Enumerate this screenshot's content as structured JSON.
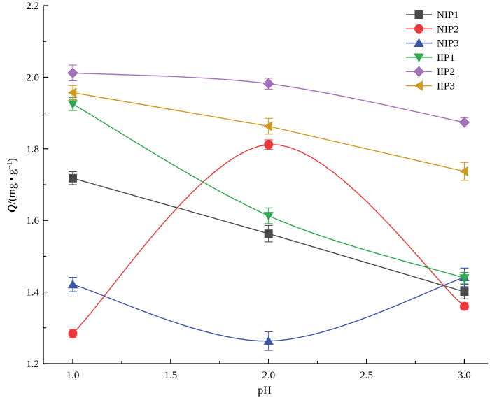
{
  "chart_data": {
    "type": "line",
    "xlabel": "pH",
    "ylabel_main": "Q",
    "ylabel_paren": "(mg • g",
    "ylabel_sup": "−1",
    "ylabel_close": ")",
    "xlim": [
      0.85,
      3.12
    ],
    "ylim": [
      1.2,
      2.2
    ],
    "x_ticks": [
      "1.0",
      "1.5",
      "2.0",
      "2.5",
      "3.0"
    ],
    "y_ticks": [
      "1.2",
      "1.4",
      "1.6",
      "1.8",
      "2.0",
      "2.2"
    ],
    "x": [
      1.0,
      2.0,
      3.0
    ],
    "legend_position": "top-right",
    "series": [
      {
        "name": "NIP1",
        "color": "#4a4a4a",
        "marker": "square",
        "values": [
          1.718,
          1.563,
          1.401
        ],
        "errors": [
          0.018,
          0.023,
          0.02
        ],
        "smooth": false
      },
      {
        "name": "NIP2",
        "color": "#e8383b",
        "marker": "circle",
        "values": [
          1.284,
          1.812,
          1.36
        ],
        "errors": [
          0.012,
          0.013,
          0.01
        ],
        "smooth": true
      },
      {
        "name": "NIP3",
        "color": "#3d56a6",
        "marker": "triangle-up",
        "values": [
          1.421,
          1.263,
          1.441
        ],
        "errors": [
          0.02,
          0.026,
          0.026
        ],
        "smooth": true
      },
      {
        "name": "IIP1",
        "color": "#2fa84f",
        "marker": "triangle-down",
        "values": [
          1.925,
          1.613,
          1.439
        ],
        "errors": [
          0.018,
          0.022,
          0.016
        ],
        "smooth": true
      },
      {
        "name": "IIP2",
        "color": "#a371b8",
        "marker": "diamond",
        "values": [
          2.012,
          1.982,
          1.874
        ],
        "errors": [
          0.022,
          0.015,
          0.013
        ],
        "smooth": true
      },
      {
        "name": "IIP3",
        "color": "#cd9a22",
        "marker": "triangle-left",
        "values": [
          1.957,
          1.863,
          1.737
        ],
        "errors": [
          0.02,
          0.022,
          0.025
        ],
        "smooth": false
      }
    ]
  }
}
